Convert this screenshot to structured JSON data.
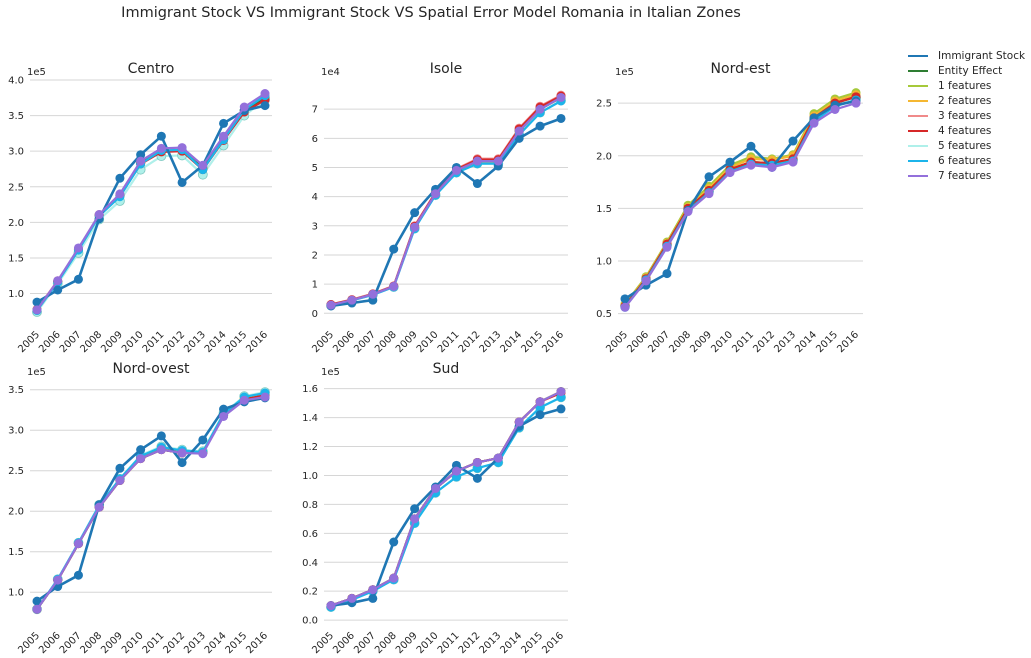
{
  "suptitle": "Immigrant Stock VS Immigrant Stock VS Spatial Error Model Romania in Italian Zones",
  "legend": [
    {
      "name": "Immigrant Stock",
      "color": "#1f77b4"
    },
    {
      "name": "Entity Effect",
      "color": "#2e7d32"
    },
    {
      "name": "1 features",
      "color": "#a6c93a"
    },
    {
      "name": "2 features",
      "color": "#f5b731"
    },
    {
      "name": "3 features",
      "color": "#f08a8a"
    },
    {
      "name": "4 features",
      "color": "#d62728"
    },
    {
      "name": "5 features",
      "color": "#aff0ea"
    },
    {
      "name": "6 features",
      "color": "#1cb4ea"
    },
    {
      "name": "7 features",
      "color": "#9370db"
    }
  ],
  "chart_data": [
    {
      "type": "line",
      "title": "Centro",
      "scale_label": "1e5",
      "x": [
        "2005",
        "2006",
        "2007",
        "2008",
        "2009",
        "2010",
        "2011",
        "2012",
        "2013",
        "2014",
        "2015",
        "2016"
      ],
      "ylim": [
        0.6,
        4.0
      ],
      "yticks": [
        "1.0",
        "1.5",
        "2.0",
        "2.5",
        "3.0",
        "3.5",
        "4.0"
      ],
      "series": [
        {
          "name": "Immigrant Stock",
          "values": [
            0.88,
            1.05,
            1.2,
            2.05,
            2.62,
            2.95,
            3.21,
            2.56,
            2.8,
            3.39,
            3.57,
            3.64
          ]
        },
        {
          "name": "Entity Effect",
          "values": [
            0.77,
            1.17,
            1.62,
            2.1,
            2.38,
            2.83,
            3.0,
            3.01,
            2.76,
            3.17,
            3.58,
            3.75
          ]
        },
        {
          "name": "1 features",
          "values": [
            0.77,
            1.17,
            1.62,
            2.1,
            2.38,
            2.83,
            3.0,
            3.01,
            2.76,
            3.17,
            3.58,
            3.75
          ]
        },
        {
          "name": "2 features",
          "values": [
            0.77,
            1.17,
            1.62,
            2.1,
            2.38,
            2.83,
            3.0,
            3.01,
            2.76,
            3.17,
            3.58,
            3.75
          ]
        },
        {
          "name": "3 features",
          "values": [
            0.78,
            1.18,
            1.63,
            2.11,
            2.39,
            2.84,
            3.01,
            3.02,
            2.77,
            3.18,
            3.58,
            3.76
          ]
        },
        {
          "name": "4 features",
          "values": [
            0.77,
            1.17,
            1.62,
            2.1,
            2.37,
            2.82,
            2.99,
            3.0,
            2.74,
            3.15,
            3.55,
            3.72
          ]
        },
        {
          "name": "5 features",
          "values": [
            0.74,
            1.14,
            1.57,
            2.04,
            2.3,
            2.74,
            2.93,
            2.94,
            2.67,
            3.08,
            3.5,
            3.72
          ]
        },
        {
          "name": "6 features",
          "values": [
            0.76,
            1.16,
            1.61,
            2.09,
            2.36,
            2.82,
            3.01,
            3.02,
            2.74,
            3.16,
            3.58,
            3.78
          ]
        },
        {
          "name": "7 features",
          "values": [
            0.77,
            1.18,
            1.64,
            2.11,
            2.4,
            2.86,
            3.04,
            3.05,
            2.8,
            3.21,
            3.62,
            3.81
          ]
        }
      ]
    },
    {
      "type": "line",
      "title": "Isole",
      "scale_label": "1e4",
      "x": [
        "2005",
        "2006",
        "2007",
        "2008",
        "2009",
        "2010",
        "2011",
        "2012",
        "2013",
        "2014",
        "2015",
        "2016"
      ],
      "ylim": [
        -0.3,
        8.0
      ],
      "yticks": [
        "0",
        "1",
        "2",
        "3",
        "4",
        "5",
        "6",
        "7"
      ],
      "series": [
        {
          "name": "Immigrant Stock",
          "values": [
            0.25,
            0.35,
            0.45,
            2.2,
            3.45,
            4.25,
            5.0,
            4.45,
            5.05,
            6.0,
            6.42,
            6.68
          ]
        },
        {
          "name": "Entity Effect",
          "values": [
            0.28,
            0.45,
            0.65,
            0.92,
            2.95,
            4.1,
            4.9,
            5.22,
            5.22,
            6.25,
            7.0,
            7.4
          ]
        },
        {
          "name": "1 features",
          "values": [
            0.28,
            0.45,
            0.65,
            0.92,
            2.95,
            4.1,
            4.9,
            5.22,
            5.22,
            6.25,
            7.0,
            7.4
          ]
        },
        {
          "name": "2 features",
          "values": [
            0.28,
            0.45,
            0.65,
            0.92,
            2.95,
            4.1,
            4.9,
            5.22,
            5.22,
            6.25,
            7.0,
            7.4
          ]
        },
        {
          "name": "3 features",
          "values": [
            0.3,
            0.47,
            0.67,
            0.94,
            3.0,
            4.15,
            4.95,
            5.3,
            5.3,
            6.35,
            7.1,
            7.48
          ]
        },
        {
          "name": "4 features",
          "values": [
            0.3,
            0.46,
            0.66,
            0.93,
            2.98,
            4.13,
            4.93,
            5.27,
            5.27,
            6.32,
            7.07,
            7.45
          ]
        },
        {
          "name": "5 features",
          "values": [
            0.27,
            0.44,
            0.63,
            0.9,
            2.9,
            4.05,
            4.82,
            5.13,
            5.13,
            6.12,
            6.88,
            7.3
          ]
        },
        {
          "name": "6 features",
          "values": [
            0.27,
            0.44,
            0.63,
            0.9,
            2.9,
            4.05,
            4.82,
            5.13,
            5.13,
            6.12,
            6.88,
            7.28
          ]
        },
        {
          "name": "7 features",
          "values": [
            0.28,
            0.45,
            0.65,
            0.92,
            2.95,
            4.1,
            4.9,
            5.22,
            5.22,
            6.25,
            7.0,
            7.4
          ]
        }
      ]
    },
    {
      "type": "line",
      "title": "Nord-est",
      "scale_label": "1e5",
      "x": [
        "2005",
        "2006",
        "2007",
        "2008",
        "2009",
        "2010",
        "2011",
        "2012",
        "2013",
        "2014",
        "2015",
        "2016"
      ],
      "ylim": [
        0.42,
        2.72
      ],
      "yticks": [
        "0.5",
        "1.0",
        "1.5",
        "2.0",
        "2.5"
      ],
      "series": [
        {
          "name": "Immigrant Stock",
          "values": [
            0.64,
            0.77,
            0.88,
            1.48,
            1.8,
            1.94,
            2.09,
            1.89,
            2.14,
            2.36,
            2.48,
            2.52
          ]
        },
        {
          "name": "Entity Effect",
          "values": [
            0.57,
            0.83,
            1.16,
            1.5,
            1.67,
            1.87,
            1.94,
            1.93,
            1.97,
            2.36,
            2.5,
            2.56
          ]
        },
        {
          "name": "1 features",
          "values": [
            0.59,
            0.85,
            1.18,
            1.53,
            1.71,
            1.91,
            1.99,
            1.97,
            2.01,
            2.4,
            2.54,
            2.6
          ]
        },
        {
          "name": "2 features",
          "values": [
            0.58,
            0.84,
            1.17,
            1.51,
            1.69,
            1.89,
            1.97,
            1.96,
            2.0,
            2.38,
            2.52,
            2.58
          ]
        },
        {
          "name": "3 features",
          "values": [
            0.57,
            0.83,
            1.16,
            1.5,
            1.67,
            1.87,
            1.94,
            1.93,
            1.97,
            2.36,
            2.5,
            2.56
          ]
        },
        {
          "name": "4 features",
          "values": [
            0.57,
            0.83,
            1.16,
            1.5,
            1.67,
            1.87,
            1.94,
            1.93,
            1.97,
            2.36,
            2.5,
            2.56
          ]
        },
        {
          "name": "5 features",
          "values": [
            0.57,
            0.82,
            1.15,
            1.49,
            1.66,
            1.86,
            1.93,
            1.92,
            1.96,
            2.34,
            2.48,
            2.55
          ]
        },
        {
          "name": "6 features",
          "values": [
            0.56,
            0.82,
            1.14,
            1.48,
            1.65,
            1.85,
            1.92,
            1.91,
            1.95,
            2.33,
            2.47,
            2.53
          ]
        },
        {
          "name": "7 features",
          "values": [
            0.56,
            0.81,
            1.13,
            1.47,
            1.64,
            1.84,
            1.91,
            1.89,
            1.94,
            2.31,
            2.44,
            2.5
          ]
        }
      ]
    },
    {
      "type": "line",
      "title": "Nord-ovest",
      "scale_label": "1e5",
      "x": [
        "2005",
        "2006",
        "2007",
        "2008",
        "2009",
        "2010",
        "2011",
        "2012",
        "2013",
        "2014",
        "2015",
        "2016"
      ],
      "ylim": [
        0.62,
        3.62
      ],
      "yticks": [
        "1.0",
        "1.5",
        "2.0",
        "2.5",
        "3.0",
        "3.5"
      ],
      "series": [
        {
          "name": "Immigrant Stock",
          "values": [
            0.89,
            1.07,
            1.21,
            2.08,
            2.53,
            2.76,
            2.93,
            2.6,
            2.88,
            3.26,
            3.35,
            3.4
          ]
        },
        {
          "name": "Entity Effect",
          "values": [
            0.79,
            1.15,
            1.6,
            2.05,
            2.38,
            2.65,
            2.76,
            2.72,
            2.72,
            3.18,
            3.38,
            3.43
          ]
        },
        {
          "name": "1 features",
          "values": [
            0.79,
            1.15,
            1.6,
            2.06,
            2.39,
            2.67,
            2.78,
            2.74,
            2.73,
            3.19,
            3.4,
            3.45
          ]
        },
        {
          "name": "2 features",
          "values": [
            0.79,
            1.15,
            1.6,
            2.05,
            2.38,
            2.66,
            2.77,
            2.73,
            2.72,
            3.18,
            3.39,
            3.44
          ]
        },
        {
          "name": "3 features",
          "values": [
            0.79,
            1.15,
            1.6,
            2.05,
            2.38,
            2.65,
            2.76,
            2.72,
            2.72,
            3.18,
            3.38,
            3.43
          ]
        },
        {
          "name": "4 features",
          "values": [
            0.79,
            1.15,
            1.6,
            2.05,
            2.38,
            2.65,
            2.76,
            2.72,
            2.72,
            3.18,
            3.38,
            3.43
          ]
        },
        {
          "name": "5 features",
          "values": [
            0.79,
            1.16,
            1.61,
            2.08,
            2.4,
            2.69,
            2.8,
            2.76,
            2.74,
            3.21,
            3.42,
            3.47
          ]
        },
        {
          "name": "6 features",
          "values": [
            0.79,
            1.16,
            1.61,
            2.07,
            2.4,
            2.68,
            2.79,
            2.75,
            2.73,
            3.2,
            3.41,
            3.46
          ]
        },
        {
          "name": "7 features",
          "values": [
            0.79,
            1.15,
            1.6,
            2.05,
            2.38,
            2.65,
            2.76,
            2.72,
            2.71,
            3.17,
            3.37,
            3.41
          ]
        }
      ]
    },
    {
      "type": "line",
      "title": "Sud",
      "scale_label": "1e5",
      "x": [
        "2005",
        "2006",
        "2007",
        "2008",
        "2009",
        "2010",
        "2011",
        "2012",
        "2013",
        "2014",
        "2015",
        "2016"
      ],
      "ylim": [
        -0.02,
        1.66
      ],
      "yticks": [
        "0.0",
        "0.2",
        "0.4",
        "0.6",
        "0.8",
        "1.0",
        "1.2",
        "1.4",
        "1.6"
      ],
      "series": [
        {
          "name": "Immigrant Stock",
          "values": [
            0.1,
            0.12,
            0.15,
            0.54,
            0.77,
            0.92,
            1.07,
            0.98,
            1.12,
            1.34,
            1.42,
            1.46
          ]
        },
        {
          "name": "Entity Effect",
          "values": [
            0.1,
            0.15,
            0.21,
            0.29,
            0.7,
            0.91,
            1.03,
            1.09,
            1.12,
            1.37,
            1.51,
            1.58
          ]
        },
        {
          "name": "1 features",
          "values": [
            0.1,
            0.15,
            0.21,
            0.29,
            0.7,
            0.91,
            1.03,
            1.09,
            1.12,
            1.37,
            1.51,
            1.58
          ]
        },
        {
          "name": "2 features",
          "values": [
            0.1,
            0.15,
            0.21,
            0.29,
            0.7,
            0.91,
            1.03,
            1.09,
            1.12,
            1.37,
            1.51,
            1.58
          ]
        },
        {
          "name": "3 features",
          "values": [
            0.1,
            0.15,
            0.21,
            0.29,
            0.7,
            0.91,
            1.03,
            1.09,
            1.12,
            1.37,
            1.51,
            1.58
          ]
        },
        {
          "name": "4 features",
          "values": [
            0.1,
            0.15,
            0.21,
            0.29,
            0.7,
            0.91,
            1.03,
            1.09,
            1.12,
            1.37,
            1.51,
            1.57
          ]
        },
        {
          "name": "5 features",
          "values": [
            0.09,
            0.14,
            0.2,
            0.28,
            0.67,
            0.88,
            0.99,
            1.05,
            1.09,
            1.33,
            1.47,
            1.54
          ]
        },
        {
          "name": "6 features",
          "values": [
            0.09,
            0.14,
            0.2,
            0.28,
            0.67,
            0.88,
            0.99,
            1.05,
            1.09,
            1.33,
            1.47,
            1.54
          ]
        },
        {
          "name": "7 features",
          "values": [
            0.1,
            0.15,
            0.21,
            0.29,
            0.7,
            0.91,
            1.03,
            1.09,
            1.12,
            1.37,
            1.51,
            1.58
          ]
        }
      ]
    }
  ]
}
